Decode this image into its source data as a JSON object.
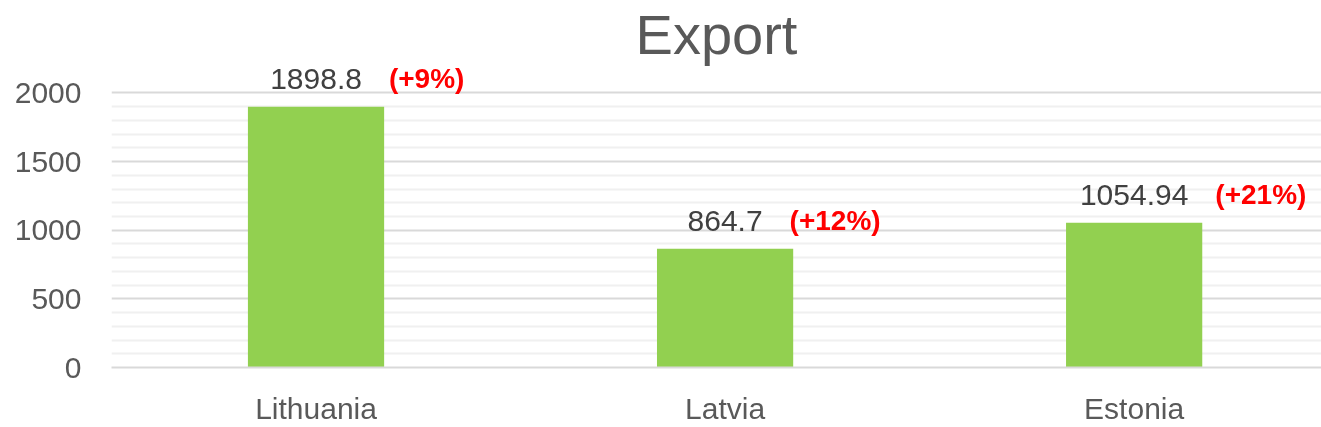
{
  "chart_data": {
    "type": "bar",
    "title": "Export",
    "categories": [
      "Lithuania",
      "Latvia",
      "Estonia"
    ],
    "values": [
      1898.8,
      864.7,
      1054.94
    ],
    "color": "#92d050",
    "ylim": [
      0,
      2000
    ],
    "yticks": [
      0,
      500,
      1000,
      1500,
      2000
    ],
    "grid": "y",
    "data_labels": true,
    "annotations": [
      {
        "text": "(+9%)",
        "x": "Lithuania",
        "y": 1898.8
      },
      {
        "text": "(+12%)",
        "x": "Latvia",
        "y": 864.7
      },
      {
        "text": "(+21%)",
        "x": "Estonia",
        "y": 1054.94
      }
    ]
  }
}
